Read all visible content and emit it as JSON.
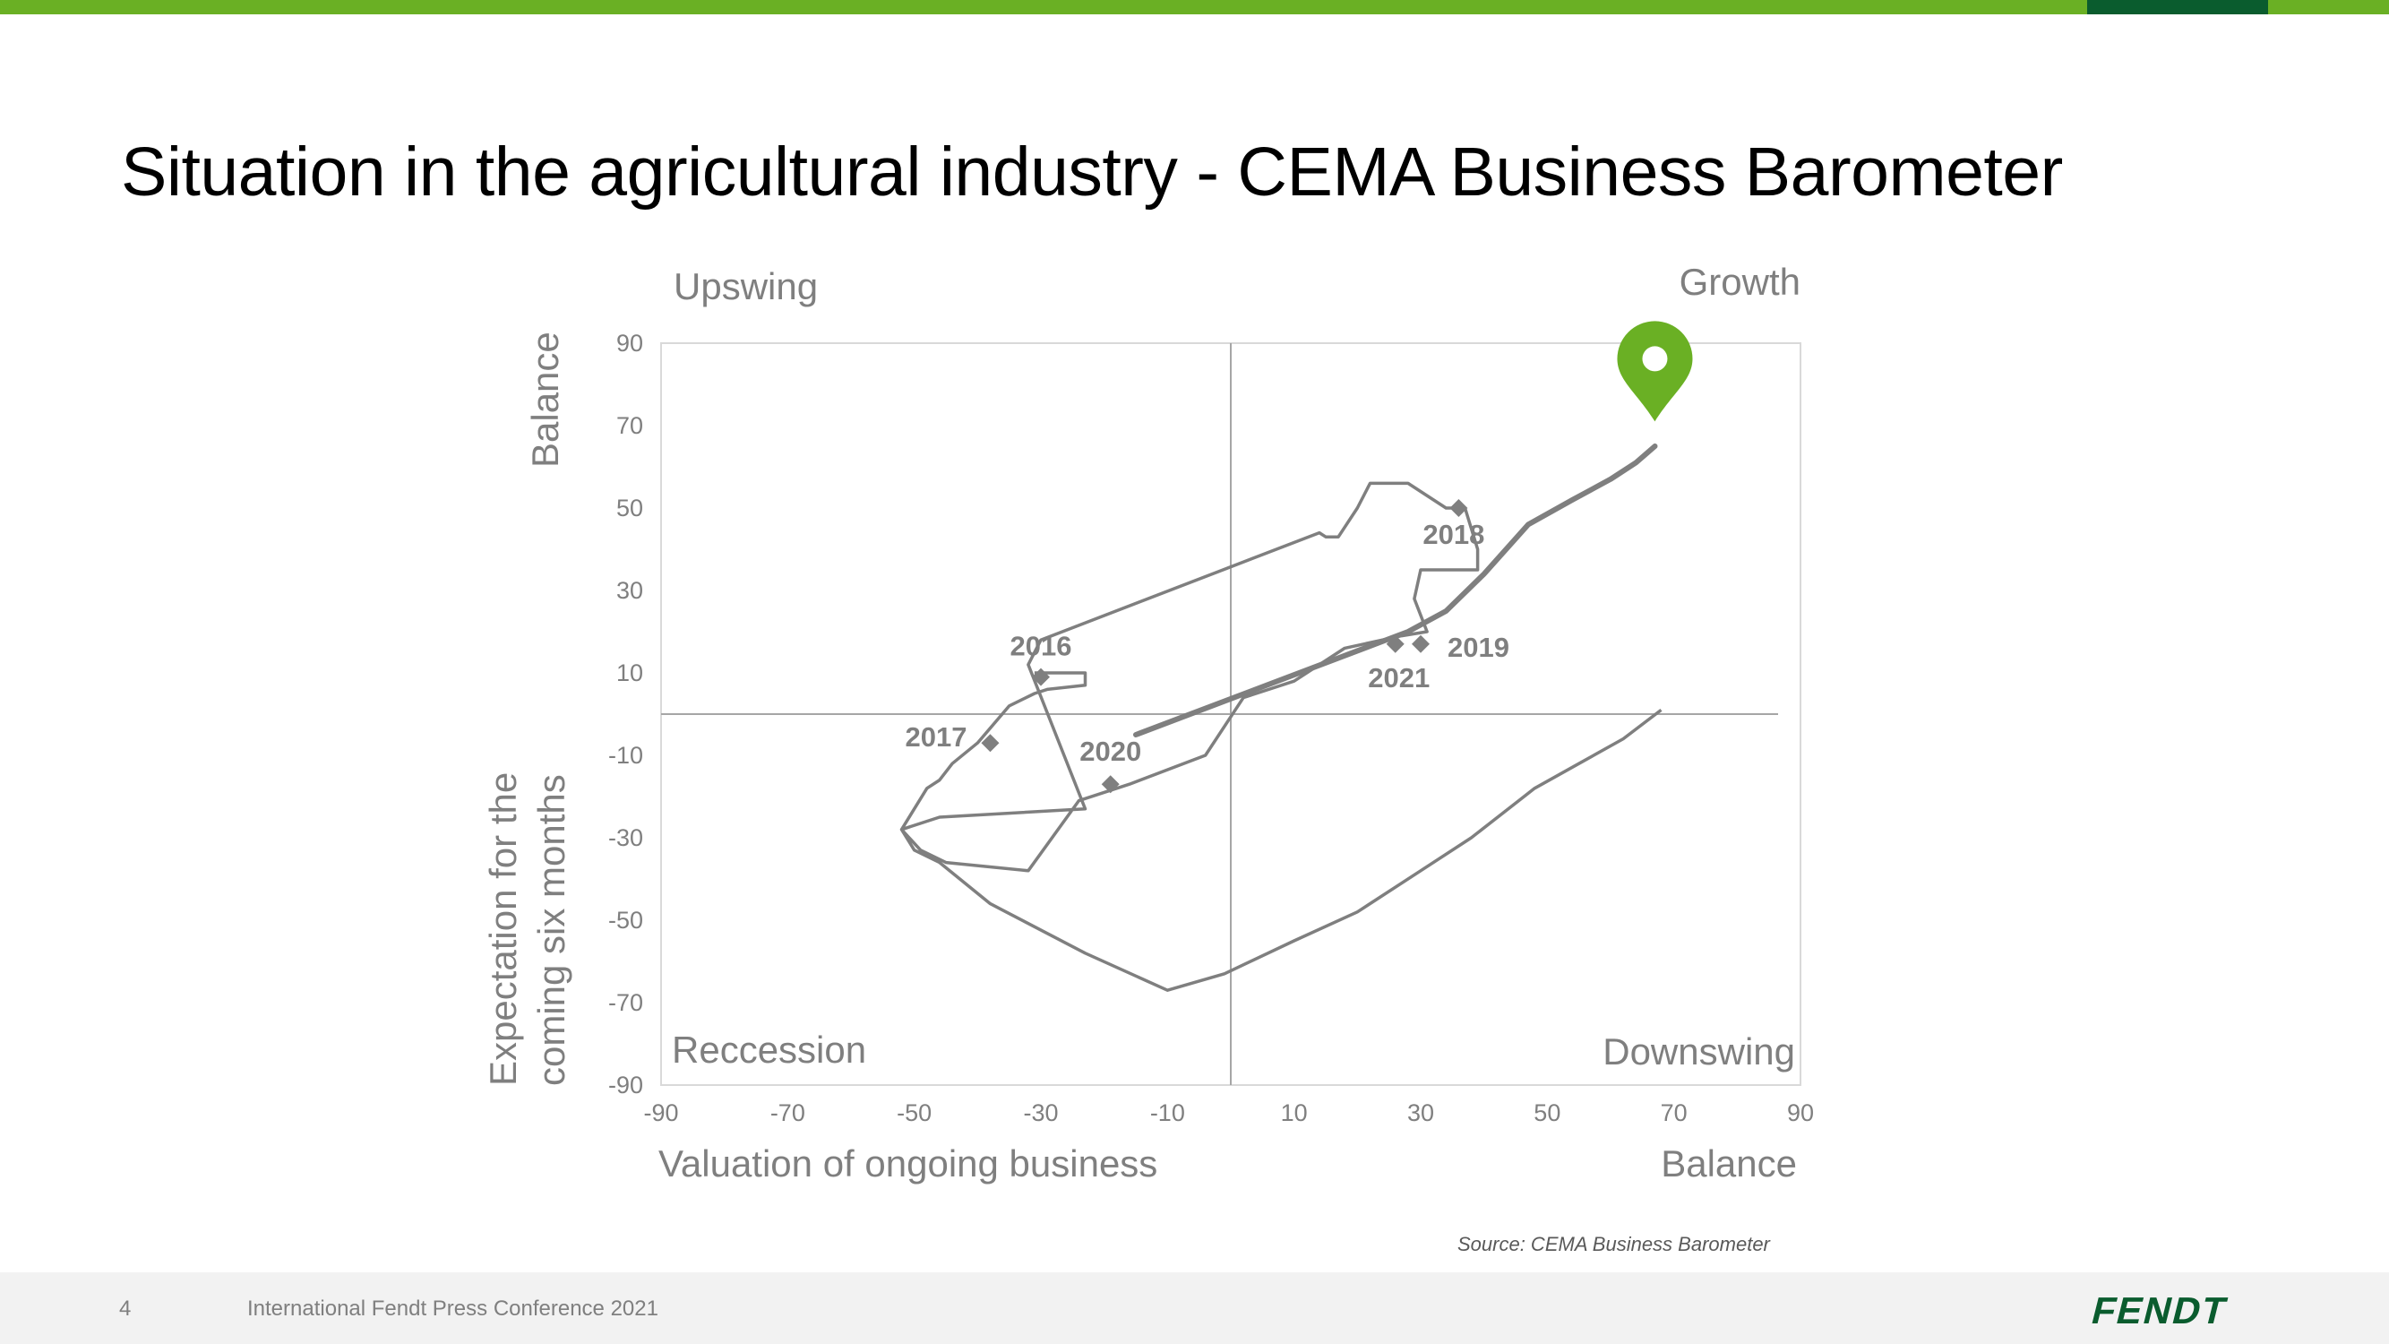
{
  "slide": {
    "title": "Situation in the agricultural industry - CEMA Business Barometer",
    "page_number": "4",
    "footer": "International Fendt Press Conference 2021",
    "source": "Source: CEMA Business Barometer",
    "logo_text": "FENDT"
  },
  "colors": {
    "brand_green": "#6ab024",
    "brand_dark_green": "#0a5c2e",
    "line": "#7f7f7f",
    "marker": "#6ab024",
    "logo": "#0a5c2e"
  },
  "chart_data": {
    "type": "line",
    "quadrants": {
      "top_left": "Upswing",
      "top_right": "Growth",
      "bottom_left": "Reccession",
      "bottom_right": "Downswing"
    },
    "xlabel": "Valuation of ongoing business",
    "xlabel_right": "Balance",
    "ylabel_top": "Balance",
    "ylabel_lines": [
      "Expectation for the",
      "coming six months"
    ],
    "xlim": [
      -90,
      90
    ],
    "ylim": [
      -90,
      90
    ],
    "xticks": [
      -90,
      -70,
      -50,
      -30,
      -10,
      10,
      30,
      50,
      70,
      90
    ],
    "yticks": [
      90,
      70,
      50,
      30,
      10,
      -10,
      -30,
      -50,
      -70,
      -90
    ],
    "grid": false,
    "reference_lines": {
      "x": 0,
      "y": 0
    },
    "path": [
      [
        -31,
        10
      ],
      [
        -23,
        10
      ],
      [
        -23,
        7
      ],
      [
        -29,
        6
      ],
      [
        -31,
        5
      ],
      [
        -35,
        2
      ],
      [
        -40,
        -7
      ],
      [
        -44,
        -12
      ],
      [
        -46,
        -16
      ],
      [
        -48,
        -18
      ],
      [
        -52,
        -28
      ],
      [
        -49,
        -33
      ],
      [
        -45,
        -36
      ],
      [
        -32,
        -38
      ],
      [
        -24,
        -21
      ],
      [
        -16,
        -17
      ],
      [
        -4,
        -10
      ],
      [
        2,
        4
      ],
      [
        10,
        8
      ],
      [
        18,
        16
      ],
      [
        27,
        19
      ],
      [
        31,
        20
      ],
      [
        29,
        28
      ],
      [
        30,
        35
      ],
      [
        39,
        35
      ],
      [
        39,
        40
      ],
      [
        37,
        50
      ],
      [
        34,
        50
      ],
      [
        28,
        56
      ],
      [
        22,
        56
      ],
      [
        20,
        50
      ],
      [
        17,
        43
      ],
      [
        15,
        43
      ],
      [
        14,
        44
      ],
      [
        -30,
        18
      ],
      [
        -32,
        12
      ],
      [
        -23,
        -23
      ],
      [
        -46,
        -25
      ],
      [
        -52,
        -28
      ],
      [
        -50,
        -33
      ],
      [
        -46,
        -36
      ],
      [
        -38,
        -46
      ],
      [
        -23,
        -58
      ],
      [
        -10,
        -67
      ],
      [
        -1,
        -63
      ],
      [
        10,
        -55
      ],
      [
        20,
        -48
      ],
      [
        30,
        -38
      ],
      [
        38,
        -30
      ],
      [
        48,
        -18
      ],
      [
        55,
        -12
      ],
      [
        62,
        -6
      ],
      [
        68,
        1
      ]
    ],
    "trend": [
      [
        -15,
        -5
      ],
      [
        28,
        20
      ],
      [
        34,
        25
      ],
      [
        40,
        34
      ],
      [
        47,
        46
      ],
      [
        54,
        52
      ],
      [
        60,
        57
      ],
      [
        64,
        61
      ],
      [
        67,
        65
      ]
    ],
    "points": [
      {
        "label": "2016",
        "x": -30,
        "y": 9
      },
      {
        "label": "2017",
        "x": -38,
        "y": -7
      },
      {
        "label": "2018",
        "x": 36,
        "y": 50
      },
      {
        "label": "2019",
        "x": 30,
        "y": 17
      },
      {
        "label": "2020",
        "x": -19,
        "y": -17
      },
      {
        "label": "2021",
        "x": 26,
        "y": 17
      }
    ],
    "current_marker": {
      "x": 67,
      "y": 71
    }
  }
}
